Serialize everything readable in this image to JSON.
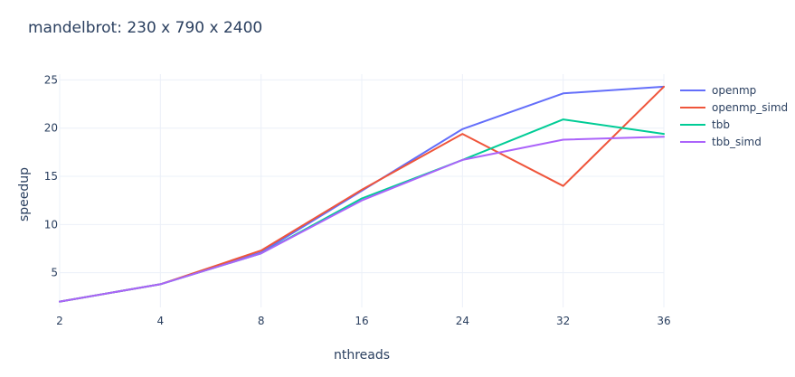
{
  "chart_data": {
    "type": "line",
    "title": "mandelbrot: 230 x 790 x 2400",
    "xlabel": "nthreads",
    "ylabel": "speedup",
    "x": [
      "2",
      "4",
      "8",
      "16",
      "24",
      "32",
      "36"
    ],
    "y_ticks": [
      "5",
      "10",
      "15",
      "20",
      "25"
    ],
    "ylim": [
      1.4,
      25.6
    ],
    "grid": true,
    "legend_position": "top-right",
    "series": [
      {
        "name": "openmp",
        "color": "#636efa",
        "values": [
          2.0,
          3.8,
          7.1,
          13.5,
          19.9,
          23.6,
          24.3
        ]
      },
      {
        "name": "openmp_simd",
        "color": "#EF553B",
        "values": [
          2.0,
          3.8,
          7.3,
          13.6,
          19.4,
          14.0,
          24.3
        ]
      },
      {
        "name": "tbb",
        "color": "#00cc96",
        "values": [
          2.0,
          3.8,
          7.0,
          12.7,
          16.7,
          20.9,
          19.4
        ]
      },
      {
        "name": "tbb_simd",
        "color": "#ab63fa",
        "values": [
          2.0,
          3.8,
          7.0,
          12.5,
          16.7,
          18.8,
          19.1
        ]
      }
    ]
  }
}
